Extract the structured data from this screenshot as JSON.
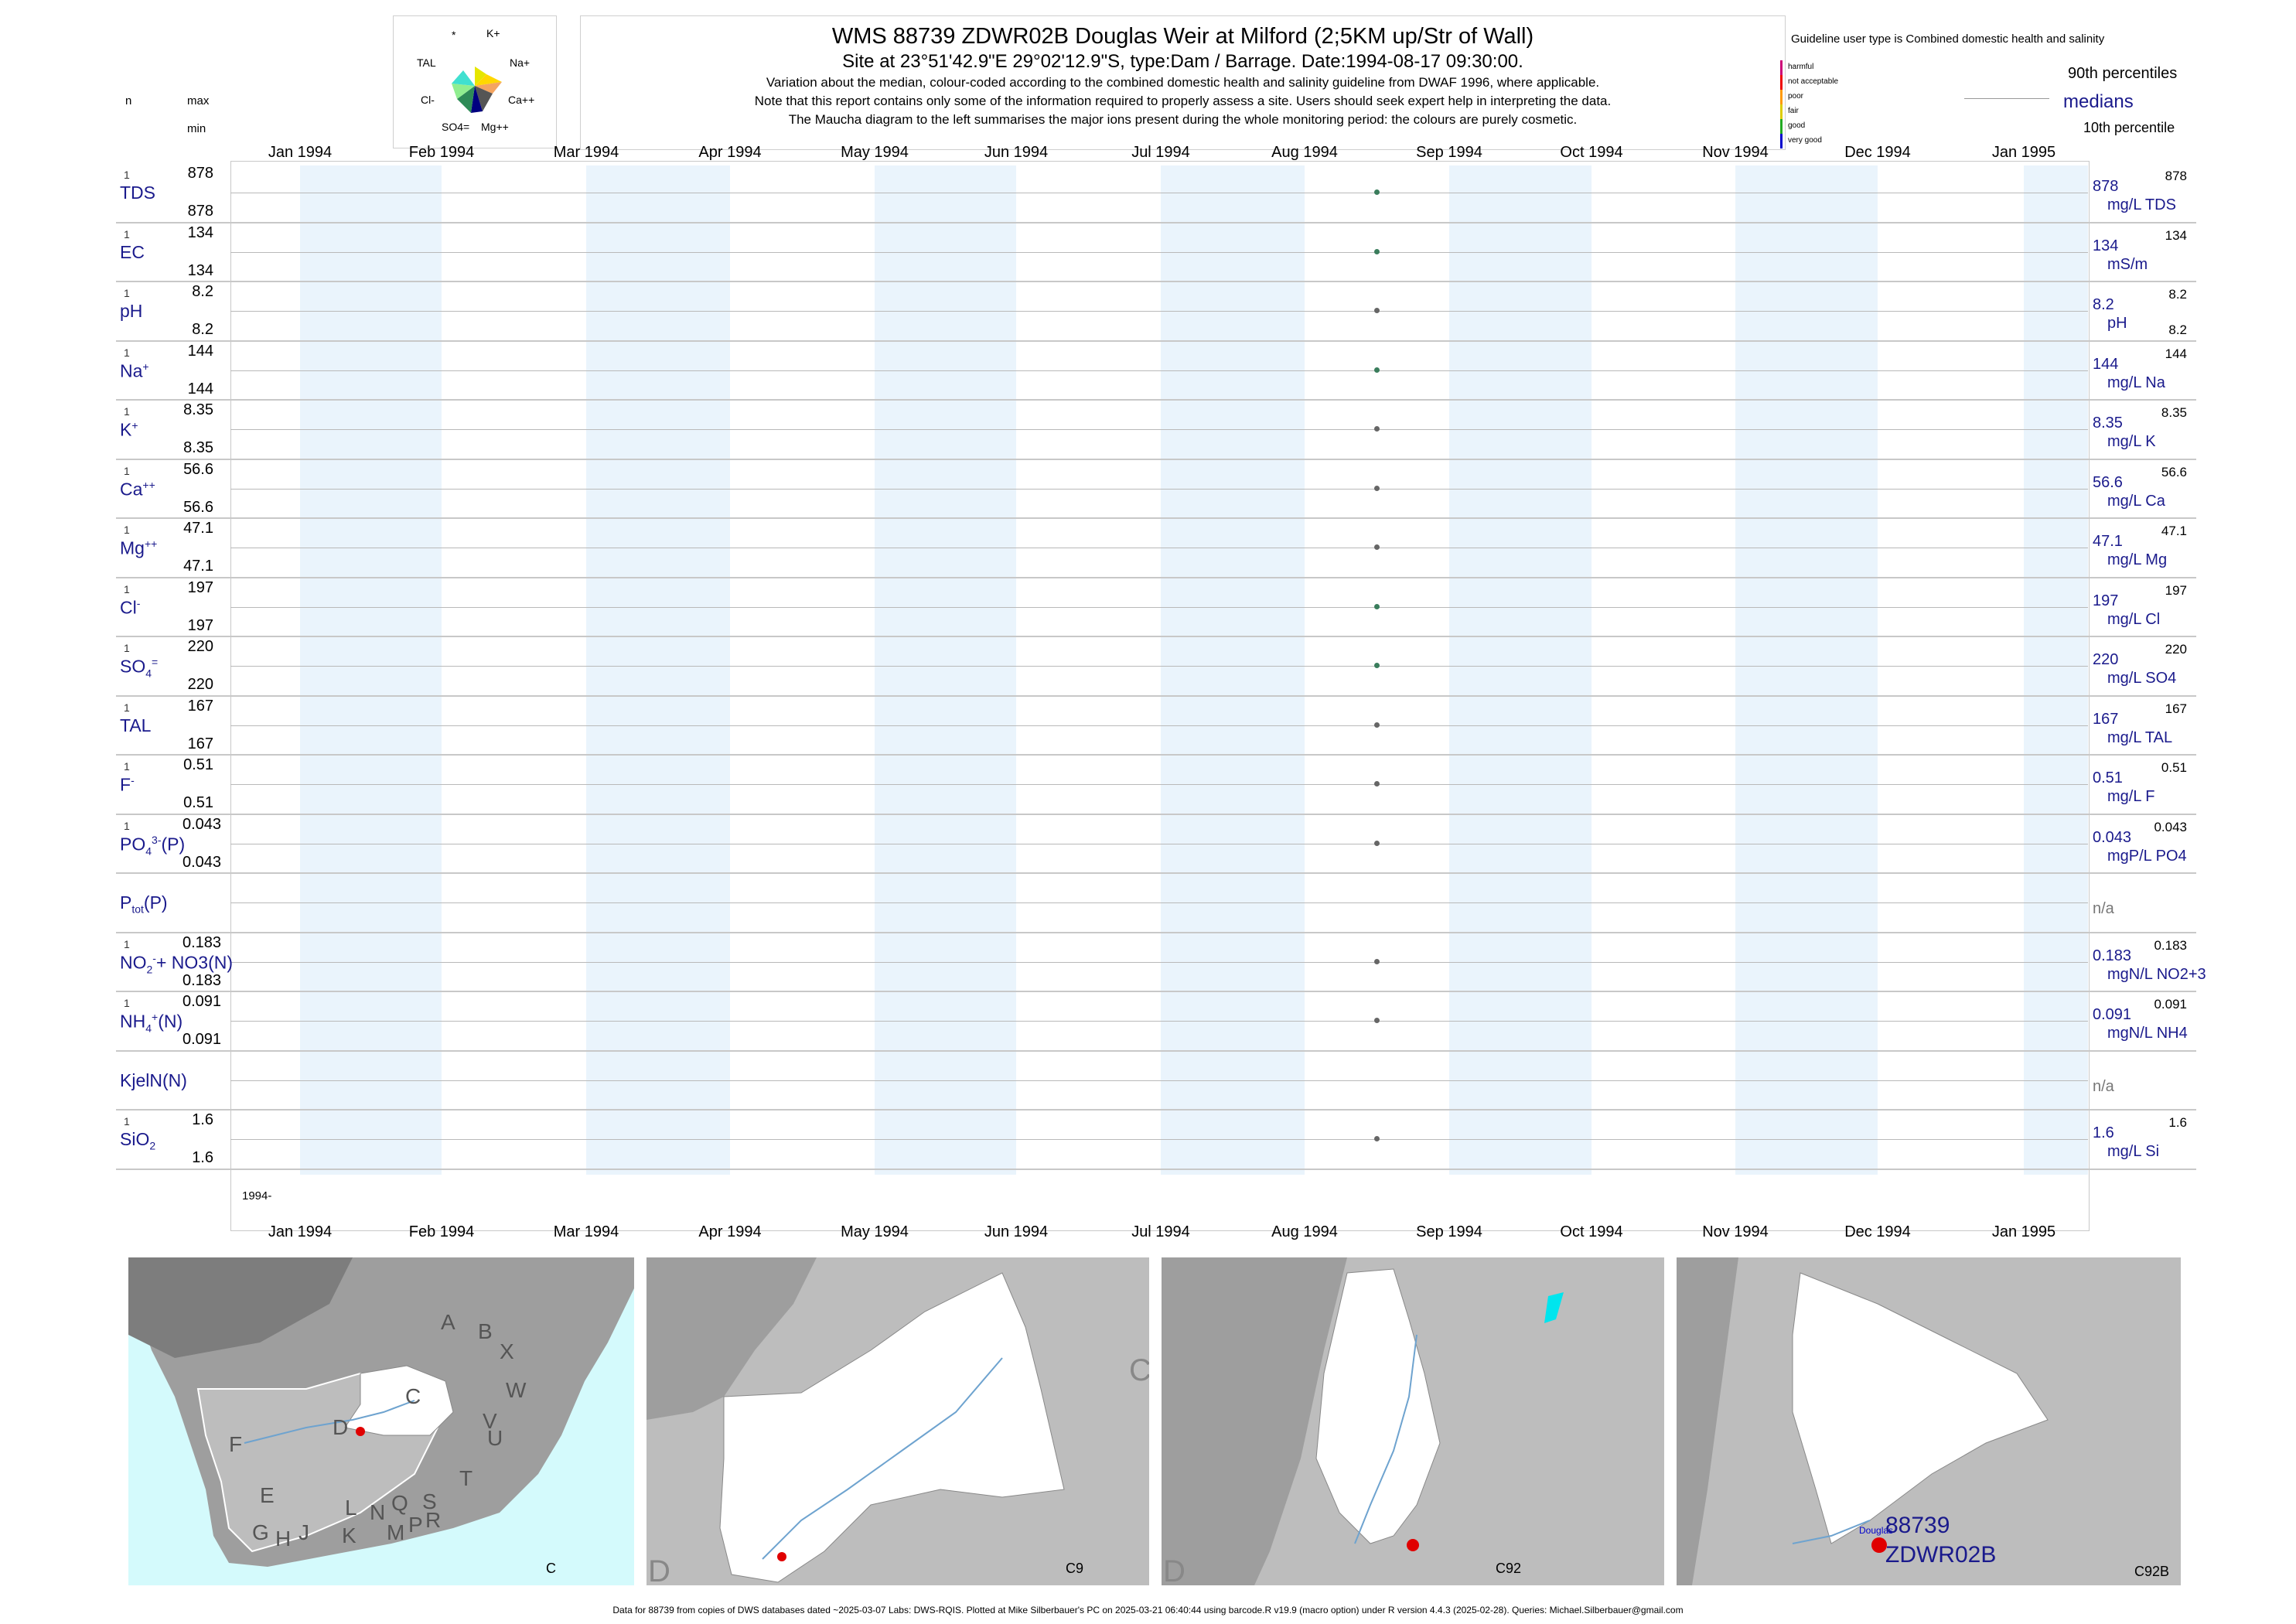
{
  "header": {
    "title": "WMS 88739 ZDWR02B Douglas Weir at Milford (2;5KM up/Str of Wall)",
    "subtitle": "Site at 23°51'42.9\"E 29°02'12.9\"S, type:Dam / Barrage. Date:1994-08-17 09:30:00.",
    "note1": "Variation about the median,  colour-coded according to the combined domestic health and salinity guideline from DWAF 1996, where applicable.",
    "note2": "Note that this report contains only some of the information required to properly assess a site. Users should seek expert help in interpreting the data.",
    "note3": "The Maucha diagram to the left summarises the major ions present during the whole monitoring period: the colours are purely cosmetic."
  },
  "left_header": {
    "n": "n",
    "max": "max",
    "min": "min"
  },
  "maucha": {
    "labels": [
      "*",
      "K+",
      "TAL",
      "Na+",
      "Cl-",
      "Ca++",
      "SO4=",
      "Mg++"
    ]
  },
  "legend": {
    "title": "Guideline user type is Combined domestic health and salinity",
    "levels": [
      {
        "label": "harmful",
        "color": "#cc0077"
      },
      {
        "label": "not acceptable",
        "color": "#ee0000"
      },
      {
        "label": "poor",
        "color": "#ff9900"
      },
      {
        "label": "fair",
        "color": "#ddcc00"
      },
      {
        "label": "good",
        "color": "#22aa22"
      },
      {
        "label": "very good",
        "color": "#0000cc"
      }
    ],
    "p90": "90th percentiles",
    "medians": "medians",
    "p10": "10th percentile"
  },
  "months": [
    "Jan 1994",
    "Feb 1994",
    "Mar 1994",
    "Apr 1994",
    "May 1994",
    "Jun 1994",
    "Jul 1994",
    "Aug 1994",
    "Sep 1994",
    "Oct 1994",
    "Nov 1994",
    "Dec 1994",
    "Jan 1995"
  ],
  "year_label": "1994-",
  "chart_data": {
    "type": "scatter",
    "x_range": [
      "1994-01-01",
      "1995-01-01"
    ],
    "sample_date": "1994-08-17",
    "series": [
      {
        "name": "TDS",
        "label": "TDS",
        "n": "1",
        "max": "878",
        "min": "878",
        "median": "878",
        "p90": "878",
        "p10": "",
        "unit": "mg/L TDS",
        "values": [
          878
        ],
        "color": "#3a7d5c"
      },
      {
        "name": "EC",
        "label": "EC",
        "n": "1",
        "max": "134",
        "min": "134",
        "median": "134",
        "p90": "134",
        "p10": "",
        "unit": "mS/m",
        "values": [
          134
        ],
        "color": "#3a7d5c"
      },
      {
        "name": "pH",
        "label": "pH",
        "n": "1",
        "max": "8.2",
        "min": "8.2",
        "median": "8.2",
        "p90": "8.2",
        "p10": "8.2",
        "unit": "pH",
        "values": [
          8.2
        ],
        "color": "#666666"
      },
      {
        "name": "Na",
        "label": "Na",
        "sup": "+",
        "n": "1",
        "max": "144",
        "min": "144",
        "median": "144",
        "p90": "144",
        "p10": "",
        "unit": "mg/L Na",
        "values": [
          144
        ],
        "color": "#3a7d5c"
      },
      {
        "name": "K",
        "label": "K",
        "sup": "+",
        "n": "1",
        "max": "8.35",
        "min": "8.35",
        "median": "8.35",
        "p90": "8.35",
        "p10": "",
        "unit": "mg/L K",
        "values": [
          8.35
        ],
        "color": "#666666"
      },
      {
        "name": "Ca",
        "label": "Ca",
        "sup": "++",
        "n": "1",
        "max": "56.6",
        "min": "56.6",
        "median": "56.6",
        "p90": "56.6",
        "p10": "",
        "unit": "mg/L Ca",
        "values": [
          56.6
        ],
        "color": "#666666"
      },
      {
        "name": "Mg",
        "label": "Mg",
        "sup": "++",
        "n": "1",
        "max": "47.1",
        "min": "47.1",
        "median": "47.1",
        "p90": "47.1",
        "p10": "",
        "unit": "mg/L Mg",
        "values": [
          47.1
        ],
        "color": "#666666"
      },
      {
        "name": "Cl",
        "label": "Cl",
        "sup": "-",
        "n": "1",
        "max": "197",
        "min": "197",
        "median": "197",
        "p90": "197",
        "p10": "",
        "unit": "mg/L Cl",
        "values": [
          197
        ],
        "color": "#3a7d5c"
      },
      {
        "name": "SO4",
        "label": "SO",
        "sub": "4",
        "sup": "=",
        "n": "1",
        "max": "220",
        "min": "220",
        "median": "220",
        "p90": "220",
        "p10": "",
        "unit": "mg/L SO4",
        "values": [
          220
        ],
        "color": "#3a7d5c"
      },
      {
        "name": "TAL",
        "label": "TAL",
        "n": "1",
        "max": "167",
        "min": "167",
        "median": "167",
        "p90": "167",
        "p10": "",
        "unit": "mg/L TAL",
        "values": [
          167
        ],
        "color": "#666666"
      },
      {
        "name": "F",
        "label": "F",
        "sup": "-",
        "n": "1",
        "max": "0.51",
        "min": "0.51",
        "median": "0.51",
        "p90": "0.51",
        "p10": "",
        "unit": "mg/L F",
        "values": [
          0.51
        ],
        "color": "#666666"
      },
      {
        "name": "PO4",
        "label": "PO",
        "sub": "4",
        "sup": "3-",
        "suffix": "(P)",
        "n": "1",
        "max": "0.043",
        "min": "0.043",
        "median": "0.043",
        "p90": "0.043",
        "p10": "",
        "unit": "mgP/L PO4",
        "values": [
          0.043
        ],
        "color": "#666666"
      },
      {
        "name": "Ptot",
        "label": "P",
        "sub": "tot",
        "suffix": "(P)",
        "n": "",
        "max": "",
        "min": "",
        "median": "n/a",
        "p90": "",
        "p10": "",
        "unit": "",
        "values": [],
        "color": "#666666"
      },
      {
        "name": "NO2+NO3",
        "label": "NO",
        "sub": "2",
        "sup": "-",
        "suffix": "+ NO3(N)",
        "n": "1",
        "max": "0.183",
        "min": "0.183",
        "median": "0.183",
        "p90": "0.183",
        "p10": "",
        "unit": "mgN/L NO2+3",
        "values": [
          0.183
        ],
        "color": "#666666"
      },
      {
        "name": "NH4",
        "label": "NH",
        "sub": "4",
        "sup": "+",
        "suffix": "(N)",
        "n": "1",
        "max": "0.091",
        "min": "0.091",
        "median": "0.091",
        "p90": "0.091",
        "p10": "",
        "unit": "mgN/L NH4",
        "values": [
          0.091
        ],
        "color": "#666666"
      },
      {
        "name": "KjelN",
        "label": "KjelN(N)",
        "n": "",
        "max": "",
        "min": "",
        "median": "n/a",
        "p90": "",
        "p10": "",
        "unit": "",
        "values": [],
        "color": "#666666"
      },
      {
        "name": "SiO2",
        "label": "SiO",
        "sub": "2",
        "n": "1",
        "max": "1.6",
        "min": "1.6",
        "median": "1.6",
        "p90": "1.6",
        "p10": "",
        "unit": "mg/L Si",
        "values": [
          1.6
        ],
        "color": "#666666"
      }
    ]
  },
  "maps": {
    "panel1": {
      "caption": "C",
      "regions": [
        "A",
        "B",
        "X",
        "W",
        "C",
        "D",
        "V",
        "U",
        "T",
        "F",
        "E",
        "G",
        "H",
        "J",
        "K",
        "L",
        "N",
        "Q",
        "M",
        "P",
        "S",
        "R"
      ]
    },
    "panel2": {
      "caption": "C9",
      "corner_letters": [
        "C",
        "D"
      ]
    },
    "panel3": {
      "caption": "C92",
      "corner_letters": [
        "D"
      ]
    },
    "panel4": {
      "caption": "C92B",
      "place": "Douglas",
      "site_id": "88739",
      "site_code": "ZDWR02B"
    }
  },
  "footer": "Data for 88739 from copies of DWS databases dated ~2025-03-07 Labs: DWS-RQIS. Plotted at Mike Silberbauer's PC on 2025-03-21 06:40:44 using barcode.R v19.9 (macro option) under R version 4.4.3 (2025-02-28). Queries: Michael.Silberbauer@gmail.com"
}
